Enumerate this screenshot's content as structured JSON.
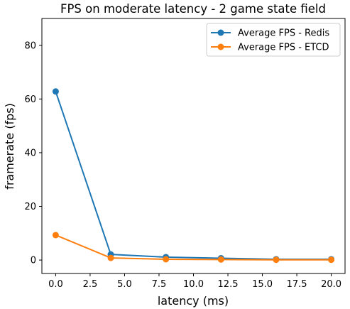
{
  "chart_data": {
    "type": "line",
    "title": "FPS on moderate latency - 2 game state field",
    "xlabel": "latency (ms)",
    "ylabel": "framerate (fps)",
    "xlim": [
      -1,
      21
    ],
    "ylim": [
      -5,
      90
    ],
    "xticks": [
      0.0,
      2.5,
      5.0,
      7.5,
      10.0,
      12.5,
      15.0,
      17.5,
      20.0
    ],
    "xtick_labels": [
      "0.0",
      "2.5",
      "5.0",
      "7.5",
      "10.0",
      "12.5",
      "15.0",
      "17.5",
      "20.0"
    ],
    "yticks": [
      0,
      20,
      40,
      60,
      80
    ],
    "ytick_labels": [
      "0",
      "20",
      "40",
      "60",
      "80"
    ],
    "grid": false,
    "legend_position": "top-right",
    "x": [
      0,
      4,
      8,
      12,
      16,
      20
    ],
    "series": [
      {
        "name": "Average FPS - Redis",
        "color": "#1f77b4",
        "values": [
          62.8,
          2.1,
          1.1,
          0.7,
          0.3,
          0.3
        ]
      },
      {
        "name": "Average FPS - ETCD",
        "color": "#ff7f0e",
        "values": [
          9.3,
          0.8,
          0.3,
          0.2,
          0.1,
          0.1
        ]
      }
    ]
  }
}
